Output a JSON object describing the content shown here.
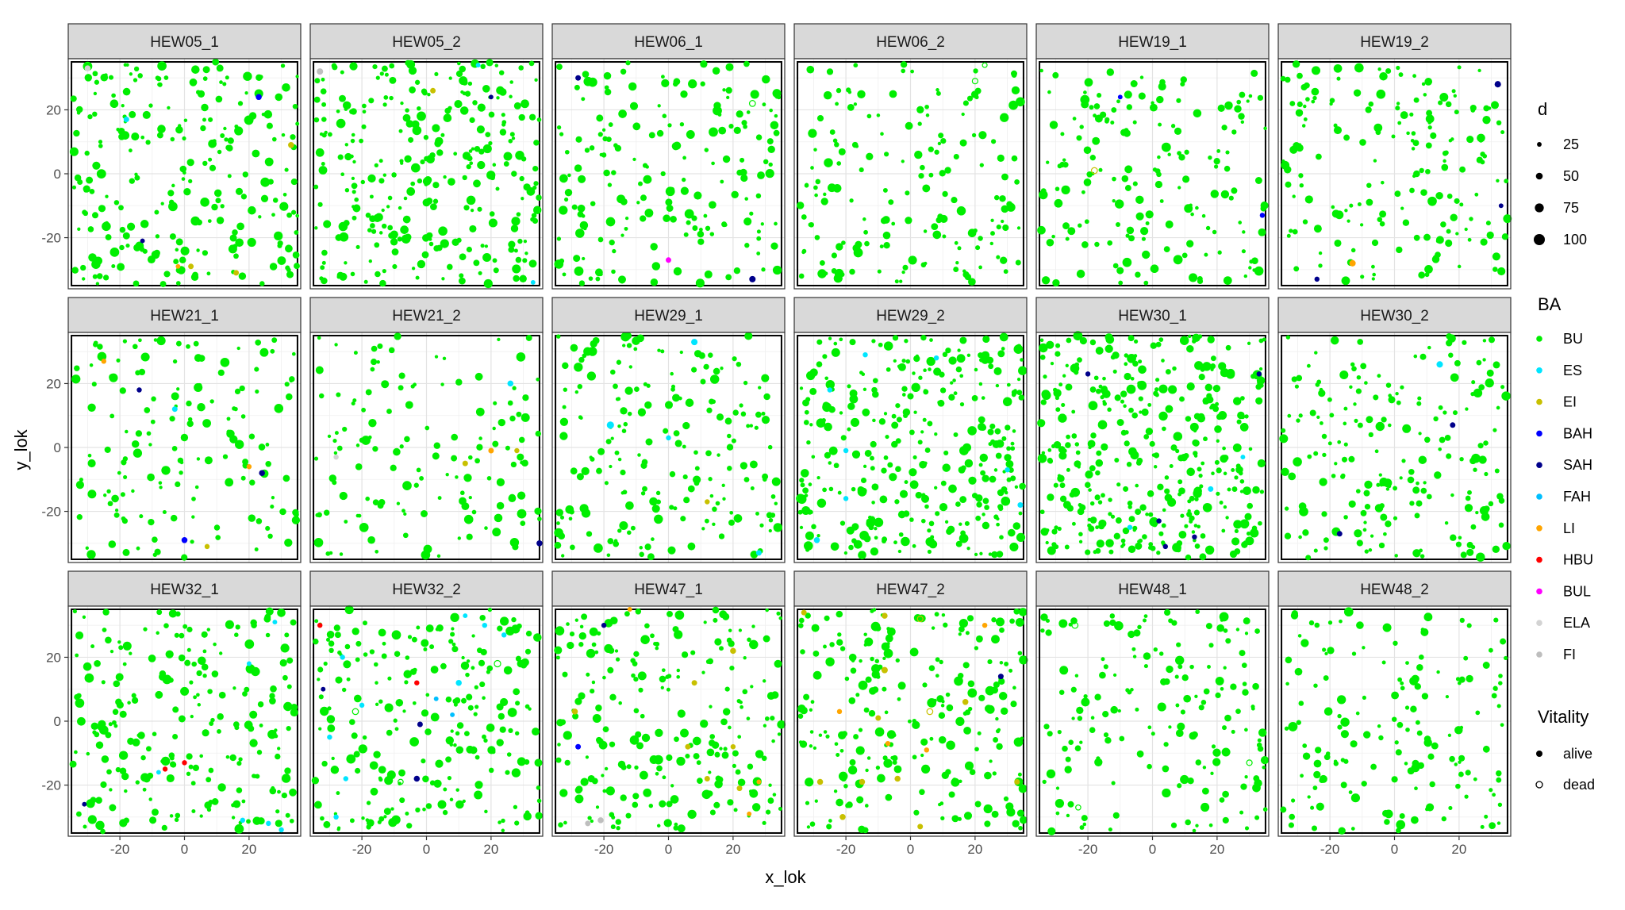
{
  "chart_data": {
    "type": "scatter",
    "facet_layout": {
      "rows": 3,
      "cols": 6
    },
    "panels": [
      "HEW05_1",
      "HEW05_2",
      "HEW06_1",
      "HEW06_2",
      "HEW19_1",
      "HEW19_2",
      "HEW21_1",
      "HEW21_2",
      "HEW29_1",
      "HEW29_2",
      "HEW30_1",
      "HEW30_2",
      "HEW32_1",
      "HEW32_2",
      "HEW47_1",
      "HEW47_2",
      "HEW48_1",
      "HEW48_2"
    ],
    "xlabel": "x_lok",
    "ylabel": "y_lok",
    "xlim": [
      -36,
      36
    ],
    "ylim": [
      -36,
      36
    ],
    "plot_boundary": [
      -35,
      35
    ],
    "x_ticks": [
      -20,
      0,
      20
    ],
    "y_ticks": [
      20,
      0,
      -20
    ],
    "x_tick_labels": [
      "-20",
      "0",
      "20"
    ],
    "y_tick_labels": [
      "20",
      "0",
      "-20"
    ],
    "grid": true,
    "legend_position": "right",
    "legends": {
      "size": {
        "title": "d",
        "entries": [
          {
            "label": "25",
            "value": 25
          },
          {
            "label": "50",
            "value": 50
          },
          {
            "label": "75",
            "value": 75
          },
          {
            "label": "100",
            "value": 100
          }
        ]
      },
      "color": {
        "title": "BA",
        "entries": [
          {
            "label": "BU",
            "color": "#00ee00"
          },
          {
            "label": "ES",
            "color": "#00e5ff"
          },
          {
            "label": "EI",
            "color": "#c8c000"
          },
          {
            "label": "BAH",
            "color": "#0000ff"
          },
          {
            "label": "SAH",
            "color": "#00008b"
          },
          {
            "label": "FAH",
            "color": "#00bfff"
          },
          {
            "label": "LI",
            "color": "#ffa500"
          },
          {
            "label": "HBU",
            "color": "#ff0000"
          },
          {
            "label": "BUL",
            "color": "#ff00ff"
          },
          {
            "label": "ELA",
            "color": "#d3d3d3"
          },
          {
            "label": "FI",
            "color": "#bebebe"
          }
        ]
      },
      "shape": {
        "title": "Vitality",
        "entries": [
          {
            "label": "alive",
            "fill": "solid"
          },
          {
            "label": "dead",
            "fill": "hollow"
          }
        ]
      }
    },
    "points_by_panel": {
      "HEW05_1": [
        {
          "x": 23,
          "y": 24,
          "d": 40,
          "ba": "BAH",
          "v": "alive"
        },
        {
          "x": -18,
          "y": 17,
          "d": 35,
          "ba": "ES",
          "v": "alive"
        },
        {
          "x": -13,
          "y": -21,
          "d": 25,
          "ba": "SAH",
          "v": "alive"
        },
        {
          "x": 2,
          "y": -29,
          "d": 35,
          "ba": "EI",
          "v": "alive"
        },
        {
          "x": -2,
          "y": -29,
          "d": 25,
          "ba": "LI",
          "v": "alive"
        },
        {
          "x": 16,
          "y": -31,
          "d": 35,
          "ba": "EI",
          "v": "alive"
        },
        {
          "x": 33,
          "y": 9,
          "d": 40,
          "ba": "EI",
          "v": "alive"
        },
        {
          "x": -30,
          "y": 33,
          "d": 40,
          "ba": "ELA",
          "v": "alive"
        }
      ],
      "HEW05_2": [
        {
          "x": -33,
          "y": 32,
          "d": 45,
          "ba": "FI",
          "v": "alive"
        },
        {
          "x": 2,
          "y": 26,
          "d": 35,
          "ba": "EI",
          "v": "alive"
        },
        {
          "x": 20,
          "y": 24,
          "d": 25,
          "ba": "SAH",
          "v": "alive"
        },
        {
          "x": 33,
          "y": -34,
          "d": 25,
          "ba": "ES",
          "v": "alive"
        },
        {
          "x": 16,
          "y": 34,
          "d": 25,
          "ba": "ES",
          "v": "alive"
        }
      ],
      "HEW06_1": [
        {
          "x": -28,
          "y": 30,
          "d": 35,
          "ba": "SAH",
          "v": "alive"
        },
        {
          "x": 0,
          "y": -27,
          "d": 35,
          "ba": "BUL",
          "v": "alive"
        },
        {
          "x": 26,
          "y": -33,
          "d": 45,
          "ba": "SAH",
          "v": "alive"
        },
        {
          "x": 26,
          "y": 22,
          "d": 40,
          "ba": "BU",
          "v": "dead"
        }
      ],
      "HEW06_2": [
        {
          "x": 20,
          "y": 29,
          "d": 35,
          "ba": "BU",
          "v": "dead"
        },
        {
          "x": 23,
          "y": 34,
          "d": 25,
          "ba": "BU",
          "v": "dead"
        }
      ],
      "HEW19_1": [
        {
          "x": -18,
          "y": 1,
          "d": 40,
          "ba": "EI",
          "v": "dead"
        },
        {
          "x": -10,
          "y": 24,
          "d": 25,
          "ba": "BAH",
          "v": "alive"
        },
        {
          "x": 34,
          "y": -13,
          "d": 30,
          "ba": "BAH",
          "v": "alive"
        }
      ],
      "HEW19_2": [
        {
          "x": 32,
          "y": 28,
          "d": 45,
          "ba": "SAH",
          "v": "alive"
        },
        {
          "x": -13,
          "y": -28,
          "d": 45,
          "ba": "LI",
          "v": "alive"
        },
        {
          "x": -24,
          "y": -33,
          "d": 30,
          "ba": "SAH",
          "v": "alive"
        },
        {
          "x": 33,
          "y": -10,
          "d": 25,
          "ba": "SAH",
          "v": "alive"
        }
      ],
      "HEW21_1": [
        {
          "x": -25,
          "y": 27,
          "d": 30,
          "ba": "LI",
          "v": "alive"
        },
        {
          "x": -14,
          "y": 18,
          "d": 30,
          "ba": "SAH",
          "v": "alive"
        },
        {
          "x": -3,
          "y": 12,
          "d": 35,
          "ba": "ES",
          "v": "alive"
        },
        {
          "x": 20,
          "y": -6,
          "d": 30,
          "ba": "LI",
          "v": "alive"
        },
        {
          "x": 24,
          "y": -8,
          "d": 40,
          "ba": "SAH",
          "v": "alive"
        },
        {
          "x": 0,
          "y": -29,
          "d": 40,
          "ba": "BAH",
          "v": "alive"
        },
        {
          "x": 7,
          "y": -31,
          "d": 30,
          "ba": "EI",
          "v": "alive"
        }
      ],
      "HEW21_2": [
        {
          "x": -28,
          "y": -3,
          "d": 30,
          "ba": "ELA",
          "v": "alive"
        },
        {
          "x": 12,
          "y": -5,
          "d": 35,
          "ba": "EI",
          "v": "alive"
        },
        {
          "x": 20,
          "y": -1,
          "d": 35,
          "ba": "LI",
          "v": "alive"
        },
        {
          "x": 28,
          "y": -1,
          "d": 30,
          "ba": "EI",
          "v": "alive"
        },
        {
          "x": 26,
          "y": 20,
          "d": 40,
          "ba": "ES",
          "v": "alive"
        },
        {
          "x": 35,
          "y": -30,
          "d": 40,
          "ba": "SAH",
          "v": "alive"
        }
      ],
      "HEW29_1": [
        {
          "x": 8,
          "y": 33,
          "d": 45,
          "ba": "ES",
          "v": "alive"
        },
        {
          "x": -18,
          "y": 7,
          "d": 55,
          "ba": "ES",
          "v": "alive"
        },
        {
          "x": 0,
          "y": 3,
          "d": 30,
          "ba": "ES",
          "v": "alive"
        },
        {
          "x": 12,
          "y": -17,
          "d": 30,
          "ba": "EI",
          "v": "alive"
        },
        {
          "x": 28,
          "y": -33,
          "d": 35,
          "ba": "ES",
          "v": "alive"
        }
      ],
      "HEW29_2": [
        {
          "x": -25,
          "y": 18,
          "d": 30,
          "ba": "ES",
          "v": "alive"
        },
        {
          "x": -14,
          "y": 29,
          "d": 30,
          "ba": "ES",
          "v": "alive"
        },
        {
          "x": -20,
          "y": -1,
          "d": 30,
          "ba": "ES",
          "v": "alive"
        },
        {
          "x": 30,
          "y": -7,
          "d": 30,
          "ba": "ES",
          "v": "alive"
        },
        {
          "x": 8,
          "y": 28,
          "d": 30,
          "ba": "ES",
          "v": "alive"
        },
        {
          "x": -29,
          "y": -29,
          "d": 40,
          "ba": "ES",
          "v": "alive"
        },
        {
          "x": -20,
          "y": -16,
          "d": 30,
          "ba": "ES",
          "v": "alive"
        },
        {
          "x": 34,
          "y": -18,
          "d": 35,
          "ba": "ES",
          "v": "alive"
        }
      ],
      "HEW30_1": [
        {
          "x": -20,
          "y": 23,
          "d": 30,
          "ba": "SAH",
          "v": "alive"
        },
        {
          "x": 33,
          "y": 23,
          "d": 30,
          "ba": "SAH",
          "v": "alive"
        },
        {
          "x": 2,
          "y": -23,
          "d": 30,
          "ba": "SAH",
          "v": "alive"
        },
        {
          "x": 4,
          "y": -31,
          "d": 30,
          "ba": "SAH",
          "v": "alive"
        },
        {
          "x": 13,
          "y": -28,
          "d": 30,
          "ba": "SAH",
          "v": "alive"
        },
        {
          "x": 18,
          "y": -13,
          "d": 35,
          "ba": "ES",
          "v": "alive"
        },
        {
          "x": 28,
          "y": -3,
          "d": 25,
          "ba": "ES",
          "v": "alive"
        },
        {
          "x": -7,
          "y": -25,
          "d": 30,
          "ba": "ES",
          "v": "alive"
        }
      ],
      "HEW30_2": [
        {
          "x": 14,
          "y": 26,
          "d": 45,
          "ba": "ES",
          "v": "alive"
        },
        {
          "x": 18,
          "y": 7,
          "d": 35,
          "ba": "SAH",
          "v": "alive"
        },
        {
          "x": -17,
          "y": -27,
          "d": 35,
          "ba": "SAH",
          "v": "alive"
        }
      ],
      "HEW32_1": [
        {
          "x": -6,
          "y": -15,
          "d": 30,
          "ba": "HBU",
          "v": "alive"
        },
        {
          "x": 0,
          "y": -13,
          "d": 30,
          "ba": "HBU",
          "v": "alive"
        },
        {
          "x": -8,
          "y": -16,
          "d": 25,
          "ba": "ES",
          "v": "alive"
        },
        {
          "x": 18,
          "y": -31,
          "d": 30,
          "ba": "ES",
          "v": "alive"
        },
        {
          "x": 26,
          "y": -32,
          "d": 30,
          "ba": "ES",
          "v": "alive"
        },
        {
          "x": 30,
          "y": -34,
          "d": 30,
          "ba": "ES",
          "v": "alive"
        },
        {
          "x": 20,
          "y": 18,
          "d": 25,
          "ba": "ES",
          "v": "alive"
        },
        {
          "x": 28,
          "y": 31,
          "d": 25,
          "ba": "ES",
          "v": "alive"
        },
        {
          "x": -31,
          "y": -26,
          "d": 25,
          "ba": "SAH",
          "v": "alive"
        }
      ],
      "HEW32_2": [
        {
          "x": -33,
          "y": 30,
          "d": 30,
          "ba": "HBU",
          "v": "alive"
        },
        {
          "x": -3,
          "y": 12,
          "d": 30,
          "ba": "HBU",
          "v": "alive"
        },
        {
          "x": -2,
          "y": -1,
          "d": 35,
          "ba": "SAH",
          "v": "alive"
        },
        {
          "x": -3,
          "y": -18,
          "d": 40,
          "ba": "SAH",
          "v": "alive"
        },
        {
          "x": -32,
          "y": 10,
          "d": 25,
          "ba": "SAH",
          "v": "alive"
        },
        {
          "x": -26,
          "y": 20,
          "d": 30,
          "ba": "ES",
          "v": "alive"
        },
        {
          "x": -20,
          "y": 5,
          "d": 30,
          "ba": "ES",
          "v": "alive"
        },
        {
          "x": -30,
          "y": -5,
          "d": 30,
          "ba": "ES",
          "v": "alive"
        },
        {
          "x": -25,
          "y": -18,
          "d": 30,
          "ba": "ES",
          "v": "alive"
        },
        {
          "x": -28,
          "y": -30,
          "d": 30,
          "ba": "ES",
          "v": "alive"
        },
        {
          "x": 10,
          "y": 12,
          "d": 40,
          "ba": "ES",
          "v": "alive"
        },
        {
          "x": 18,
          "y": 30,
          "d": 30,
          "ba": "ES",
          "v": "alive"
        },
        {
          "x": 12,
          "y": 33,
          "d": 25,
          "ba": "ES",
          "v": "alive"
        },
        {
          "x": 24,
          "y": 27,
          "d": 30,
          "ba": "ES",
          "v": "alive"
        },
        {
          "x": 3,
          "y": 7,
          "d": 25,
          "ba": "FAH",
          "v": "alive"
        },
        {
          "x": 8,
          "y": 2,
          "d": 25,
          "ba": "FAH",
          "v": "alive"
        },
        {
          "x": 22,
          "y": 18,
          "d": 45,
          "ba": "BU",
          "v": "dead"
        },
        {
          "x": -22,
          "y": 3,
          "d": 40,
          "ba": "BU",
          "v": "dead"
        },
        {
          "x": -8,
          "y": -19,
          "d": 30,
          "ba": "BU",
          "v": "dead"
        }
      ],
      "HEW47_1": [
        {
          "x": -20,
          "y": 30,
          "d": 30,
          "ba": "SAH",
          "v": "alive"
        },
        {
          "x": -29,
          "y": 3,
          "d": 40,
          "ba": "EI",
          "v": "alive"
        },
        {
          "x": -28,
          "y": -8,
          "d": 35,
          "ba": "BAH",
          "v": "alive"
        },
        {
          "x": 8,
          "y": 12,
          "d": 35,
          "ba": "EI",
          "v": "alive"
        },
        {
          "x": 20,
          "y": 22,
          "d": 40,
          "ba": "EI",
          "v": "alive"
        },
        {
          "x": 6,
          "y": -8,
          "d": 35,
          "ba": "EI",
          "v": "alive"
        },
        {
          "x": 20,
          "y": -8,
          "d": 30,
          "ba": "EI",
          "v": "alive"
        },
        {
          "x": 12,
          "y": -18,
          "d": 35,
          "ba": "EI",
          "v": "alive"
        },
        {
          "x": 22,
          "y": -21,
          "d": 35,
          "ba": "EI",
          "v": "alive"
        },
        {
          "x": -21,
          "y": -31,
          "d": 40,
          "ba": "FI",
          "v": "alive"
        },
        {
          "x": -25,
          "y": -32,
          "d": 35,
          "ba": "FI",
          "v": "alive"
        },
        {
          "x": 28,
          "y": -19,
          "d": 25,
          "ba": "LI",
          "v": "alive"
        },
        {
          "x": 25,
          "y": -29,
          "d": 25,
          "ba": "LI",
          "v": "alive"
        },
        {
          "x": -12,
          "y": 35,
          "d": 25,
          "ba": "LI",
          "v": "alive"
        }
      ],
      "HEW47_2": [
        {
          "x": -33,
          "y": 34,
          "d": 35,
          "ba": "EI",
          "v": "alive"
        },
        {
          "x": -8,
          "y": 33,
          "d": 40,
          "ba": "EI",
          "v": "alive"
        },
        {
          "x": -8,
          "y": 16,
          "d": 45,
          "ba": "EI",
          "v": "alive"
        },
        {
          "x": -10,
          "y": 1,
          "d": 35,
          "ba": "EI",
          "v": "alive"
        },
        {
          "x": -28,
          "y": -19,
          "d": 40,
          "ba": "EI",
          "v": "alive"
        },
        {
          "x": -15,
          "y": -19,
          "d": 40,
          "ba": "EI",
          "v": "alive"
        },
        {
          "x": -4,
          "y": -18,
          "d": 40,
          "ba": "EI",
          "v": "alive"
        },
        {
          "x": 3,
          "y": -33,
          "d": 35,
          "ba": "EI",
          "v": "alive"
        },
        {
          "x": 17,
          "y": 6,
          "d": 40,
          "ba": "EI",
          "v": "alive"
        },
        {
          "x": 33,
          "y": -19,
          "d": 35,
          "ba": "EI",
          "v": "alive"
        },
        {
          "x": -21,
          "y": -30,
          "d": 40,
          "ba": "EI",
          "v": "alive"
        },
        {
          "x": 28,
          "y": 14,
          "d": 35,
          "ba": "SAH",
          "v": "alive"
        },
        {
          "x": -22,
          "y": 3,
          "d": 30,
          "ba": "LI",
          "v": "alive"
        },
        {
          "x": -7,
          "y": -7,
          "d": 30,
          "ba": "LI",
          "v": "alive"
        },
        {
          "x": 5,
          "y": -9,
          "d": 30,
          "ba": "LI",
          "v": "alive"
        },
        {
          "x": 23,
          "y": 30,
          "d": 30,
          "ba": "LI",
          "v": "alive"
        },
        {
          "x": 6,
          "y": 3,
          "d": 40,
          "ba": "EI",
          "v": "dead"
        },
        {
          "x": 3,
          "y": 32,
          "d": 35,
          "ba": "EI",
          "v": "dead"
        }
      ],
      "HEW48_1": [
        {
          "x": -24,
          "y": 30,
          "d": 40,
          "ba": "BU",
          "v": "dead"
        },
        {
          "x": 30,
          "y": -13,
          "d": 35,
          "ba": "BU",
          "v": "dead"
        },
        {
          "x": -23,
          "y": -27,
          "d": 30,
          "ba": "BU",
          "v": "dead"
        }
      ],
      "HEW48_2": []
    },
    "background_points": {
      "species": "BU",
      "vitality": "alive",
      "note_counts": {
        "HEW05_1": 240,
        "HEW05_2": 300,
        "HEW06_1": 190,
        "HEW06_2": 170,
        "HEW19_1": 170,
        "HEW19_2": 180,
        "HEW21_1": 150,
        "HEW21_2": 140,
        "HEW29_1": 200,
        "HEW29_2": 330,
        "HEW30_1": 380,
        "HEW30_2": 200,
        "HEW32_1": 230,
        "HEW32_2": 230,
        "HEW47_1": 230,
        "HEW47_2": 240,
        "HEW48_1": 170,
        "HEW48_2": 160
      }
    }
  }
}
